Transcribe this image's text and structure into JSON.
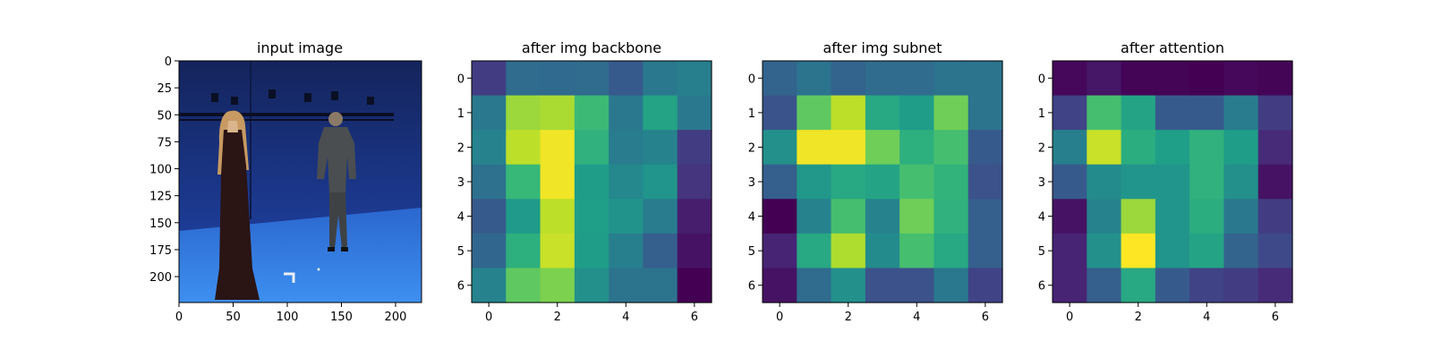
{
  "chart_data": [
    {
      "type": "image",
      "title": "input image",
      "image_description": "blue-screen studio with two people standing",
      "xlim": [
        0,
        224
      ],
      "ylim": [
        224,
        0
      ],
      "xticks": [
        0,
        50,
        100,
        150,
        200
      ],
      "yticks": [
        0,
        25,
        50,
        75,
        100,
        125,
        150,
        175,
        200
      ],
      "colors": {
        "wall_top": "#14245c",
        "wall_bottom": "#1d3c96",
        "floor_top": "#2b67cf",
        "floor_bottom": "#3d8ff0",
        "person_dark": "#2a1414",
        "person_gray": "#4a4e50",
        "hair": "#c79a62",
        "rig": "#0a0f24"
      }
    },
    {
      "type": "heatmap",
      "title": "after img backbone",
      "colormap": "viridis",
      "xticks": [
        0,
        2,
        4,
        6
      ],
      "yticks": [
        0,
        1,
        2,
        3,
        4,
        5,
        6
      ],
      "values": [
        [
          0.18,
          0.35,
          0.34,
          0.35,
          0.28,
          0.4,
          0.43
        ],
        [
          0.4,
          0.85,
          0.87,
          0.68,
          0.4,
          0.58,
          0.4
        ],
        [
          0.45,
          0.9,
          0.98,
          0.64,
          0.42,
          0.45,
          0.18
        ],
        [
          0.37,
          0.67,
          0.98,
          0.55,
          0.47,
          0.52,
          0.15
        ],
        [
          0.28,
          0.54,
          0.9,
          0.56,
          0.51,
          0.42,
          0.08
        ],
        [
          0.33,
          0.63,
          0.92,
          0.55,
          0.43,
          0.3,
          0.05
        ],
        [
          0.45,
          0.75,
          0.8,
          0.5,
          0.38,
          0.38,
          0.0
        ]
      ]
    },
    {
      "type": "heatmap",
      "title": "after img subnet",
      "colormap": "viridis",
      "xticks": [
        0,
        2,
        4,
        6
      ],
      "yticks": [
        0,
        1,
        2,
        3,
        4,
        5,
        6
      ],
      "values": [
        [
          0.32,
          0.38,
          0.32,
          0.35,
          0.35,
          0.38,
          0.38
        ],
        [
          0.26,
          0.75,
          0.9,
          0.6,
          0.55,
          0.78,
          0.38
        ],
        [
          0.5,
          0.98,
          0.98,
          0.78,
          0.63,
          0.7,
          0.28
        ],
        [
          0.3,
          0.53,
          0.6,
          0.58,
          0.7,
          0.65,
          0.25
        ],
        [
          0.0,
          0.45,
          0.7,
          0.45,
          0.78,
          0.64,
          0.3
        ],
        [
          0.1,
          0.6,
          0.88,
          0.48,
          0.7,
          0.6,
          0.3
        ],
        [
          0.05,
          0.35,
          0.5,
          0.25,
          0.25,
          0.4,
          0.2
        ]
      ]
    },
    {
      "type": "heatmap",
      "title": "after attention",
      "colormap": "viridis",
      "xticks": [
        0,
        2,
        4,
        6
      ],
      "yticks": [
        0,
        1,
        2,
        3,
        4,
        5,
        6
      ],
      "values": [
        [
          0.02,
          0.06,
          0.01,
          0.01,
          0.0,
          0.02,
          0.01
        ],
        [
          0.2,
          0.7,
          0.58,
          0.28,
          0.28,
          0.42,
          0.18
        ],
        [
          0.43,
          0.92,
          0.62,
          0.56,
          0.64,
          0.55,
          0.12
        ],
        [
          0.28,
          0.48,
          0.52,
          0.52,
          0.64,
          0.5,
          0.05
        ],
        [
          0.05,
          0.45,
          0.85,
          0.52,
          0.62,
          0.4,
          0.18
        ],
        [
          0.1,
          0.5,
          1.0,
          0.52,
          0.58,
          0.32,
          0.22
        ],
        [
          0.1,
          0.3,
          0.6,
          0.28,
          0.2,
          0.18,
          0.12
        ]
      ]
    }
  ]
}
